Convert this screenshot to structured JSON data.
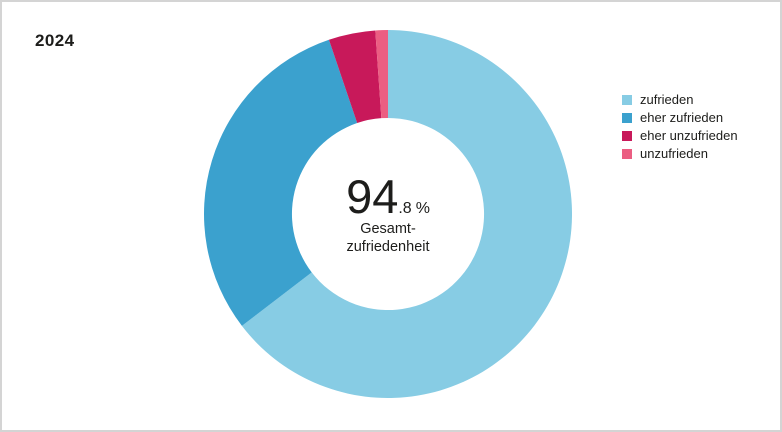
{
  "page": {
    "year_label": "2024",
    "background": "#ffffff",
    "border_color": "#d4d4d4",
    "text_color": "#1d1d1b"
  },
  "chart_data": {
    "type": "pie",
    "subtype": "donut",
    "title": "2024",
    "categories": [
      "zufrieden",
      "eher zufrieden",
      "eher unzufrieden",
      "unzufrieden"
    ],
    "values": [
      64.6,
      30.2,
      4.1,
      1.1
    ],
    "unit": "%",
    "colors": [
      "#87CCE4",
      "#3BA1CE",
      "#C8195A",
      "#EB5E82"
    ],
    "start_angle_deg": 0,
    "direction": "clockwise",
    "inner_radius_ratio": 0.522,
    "legend_position": "right",
    "grid": false,
    "center": {
      "value_major": "94",
      "value_minor": ".8",
      "unit": "%",
      "label_line1": "Gesamt-",
      "label_line2": "zufriedenheit"
    }
  }
}
